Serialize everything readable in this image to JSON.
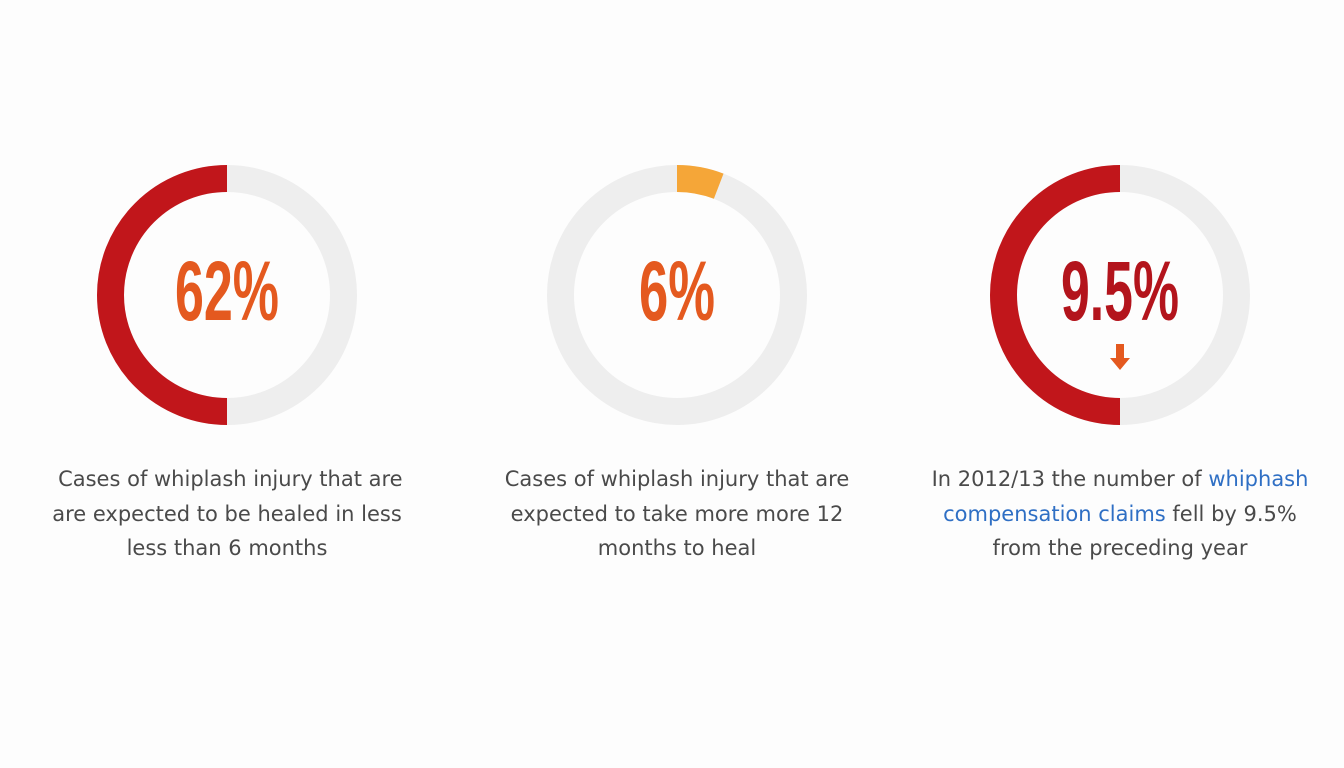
{
  "stats": [
    {
      "figure": "62%",
      "color": "#e4591f",
      "caption": [
        [
          {
            "text": " Cases of whiplash injury that are"
          }
        ],
        [
          {
            "text": "are expected to be healed in less"
          }
        ],
        [
          {
            "text": "less than 6 months"
          }
        ]
      ]
    },
    {
      "figure": "6%",
      "color": "#e4591f",
      "caption": [
        [
          {
            "text": "Cases of whiplash injury that are"
          }
        ],
        [
          {
            "text": "expected to take more more 12"
          }
        ],
        [
          {
            "text": "months to heal"
          }
        ]
      ]
    },
    {
      "figure": "9.5%",
      "color": "#b3141c",
      "caption": [
        [
          {
            "text": "In 2012/13 the number of "
          },
          {
            "text": "whiphash",
            "color": "#2f6fc4"
          }
        ],
        [
          {
            "text": "compensation claims",
            "color": "#2f6fc4"
          },
          {
            "text": " fell by 9.5%"
          }
        ],
        [
          {
            "text": "from the preceding year"
          }
        ]
      ]
    }
  ]
}
